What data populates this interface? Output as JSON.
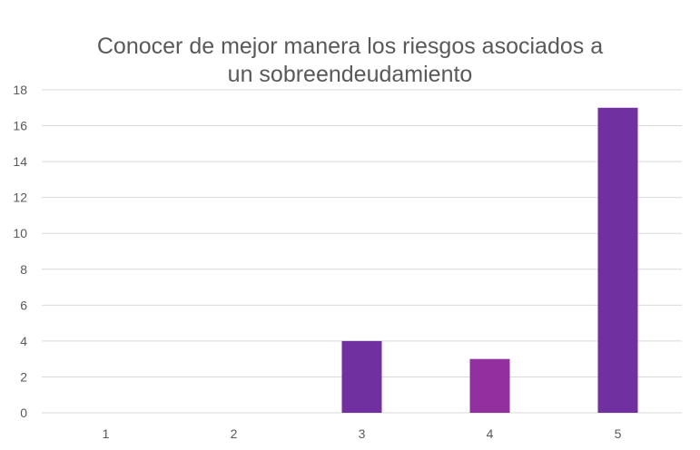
{
  "chart_data": {
    "type": "bar",
    "title_lines": [
      "Conocer de mejor manera los riesgos asociados a",
      "un sobreendeudamiento"
    ],
    "xlabel": "",
    "ylabel": "",
    "categories": [
      "1",
      "2",
      "3",
      "4",
      "5"
    ],
    "values": [
      0,
      0,
      4,
      3,
      17
    ],
    "bar_colors": [
      "#7030A0",
      "#7030A0",
      "#7030A0",
      "#9230A0",
      "#7030A0"
    ],
    "ylim": [
      0,
      18
    ],
    "yticks": [
      "0",
      "2",
      "4",
      "6",
      "8",
      "10",
      "12",
      "14",
      "16",
      "18"
    ],
    "grid": true,
    "legend": "none",
    "gridline_color": "#D9D9D9"
  }
}
